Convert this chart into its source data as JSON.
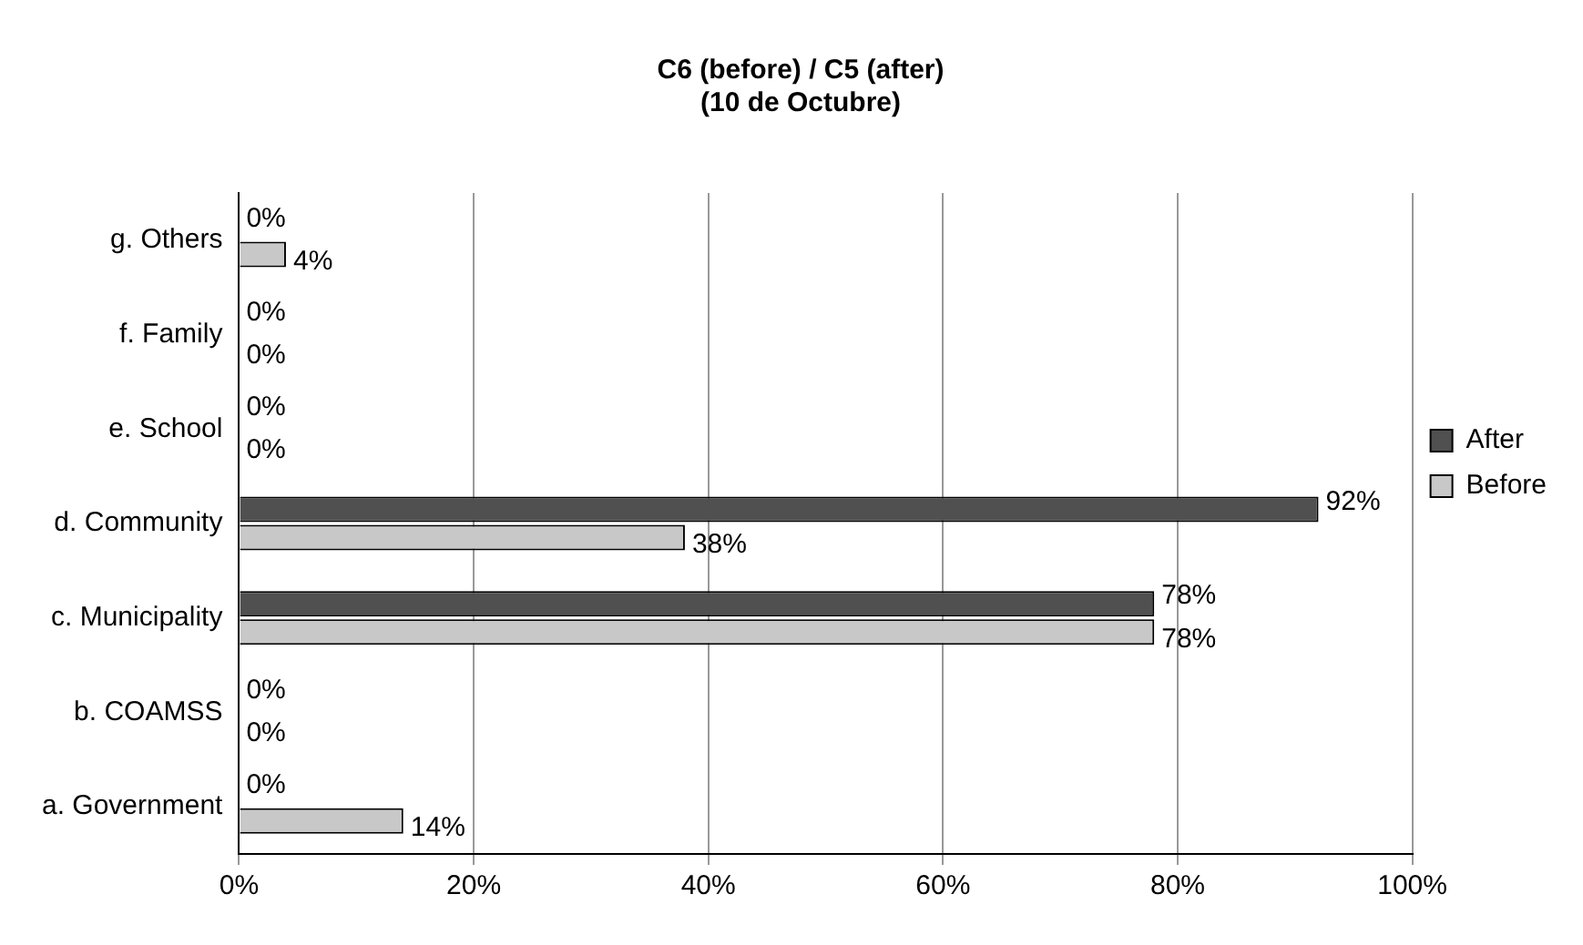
{
  "chart_data": {
    "type": "bar",
    "orientation": "horizontal",
    "title": "C6 (before) / C5 (after)\n(10 de Octubre)",
    "categories": [
      "g. Others",
      "f. Family",
      "e. School",
      "d. Community",
      "c. Municipality",
      "b. COAMSS",
      "a. Government"
    ],
    "series": [
      {
        "name": "After",
        "color": "#505050",
        "values": [
          0,
          0,
          0,
          92,
          78,
          0,
          0
        ],
        "value_labels": [
          "0%",
          "0%",
          "0%",
          "92%",
          "78%",
          "0%",
          "0%"
        ]
      },
      {
        "name": "Before",
        "color": "#c8c8c8",
        "values": [
          4,
          0,
          0,
          38,
          78,
          0,
          14
        ],
        "value_labels": [
          "4%",
          "0%",
          "0%",
          "38%",
          "78%",
          "0%",
          "14%"
        ]
      }
    ],
    "xlim": [
      0,
      100
    ],
    "xticks": [
      {
        "value": 0,
        "label": "0%"
      },
      {
        "value": 20,
        "label": "20%"
      },
      {
        "value": 40,
        "label": "40%"
      },
      {
        "value": 60,
        "label": "60%"
      },
      {
        "value": 80,
        "label": "80%"
      },
      {
        "value": 100,
        "label": "100%"
      }
    ],
    "grid": "x",
    "legend": "right"
  }
}
